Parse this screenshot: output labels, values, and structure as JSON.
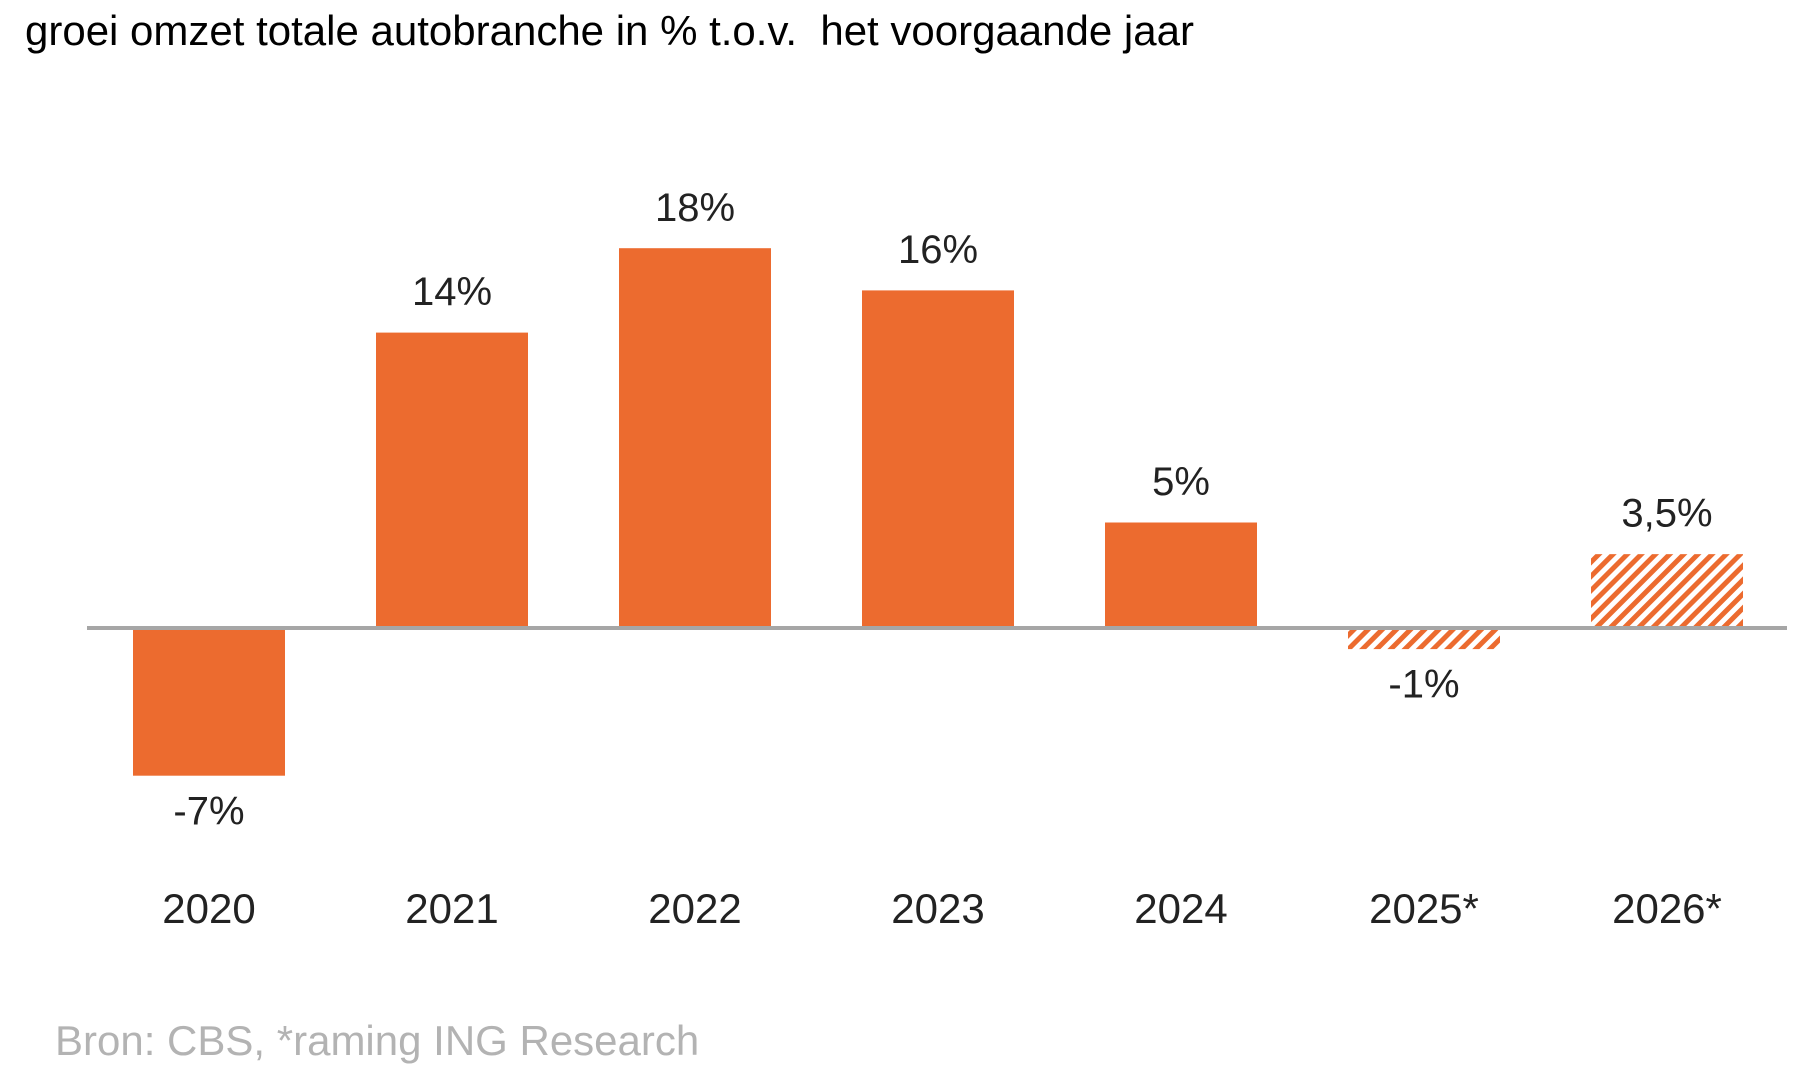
{
  "chart_data": {
    "type": "bar",
    "title": "groei omzet totale autobranche in % t.o.v.  het voorgaande jaar",
    "categories": [
      "2020",
      "2021",
      "2022",
      "2023",
      "2024",
      "2025*",
      "2026*"
    ],
    "values": [
      -7,
      14,
      18,
      16,
      5,
      -1,
      3.5
    ],
    "value_labels": [
      "-7%",
      "14%",
      "18%",
      "16%",
      "5%",
      "-1%",
      "3,5%"
    ],
    "hatched": [
      false,
      false,
      false,
      false,
      false,
      true,
      true
    ],
    "color": "#ec6b2f",
    "source": "Bron: CBS, *raming ING Research"
  }
}
